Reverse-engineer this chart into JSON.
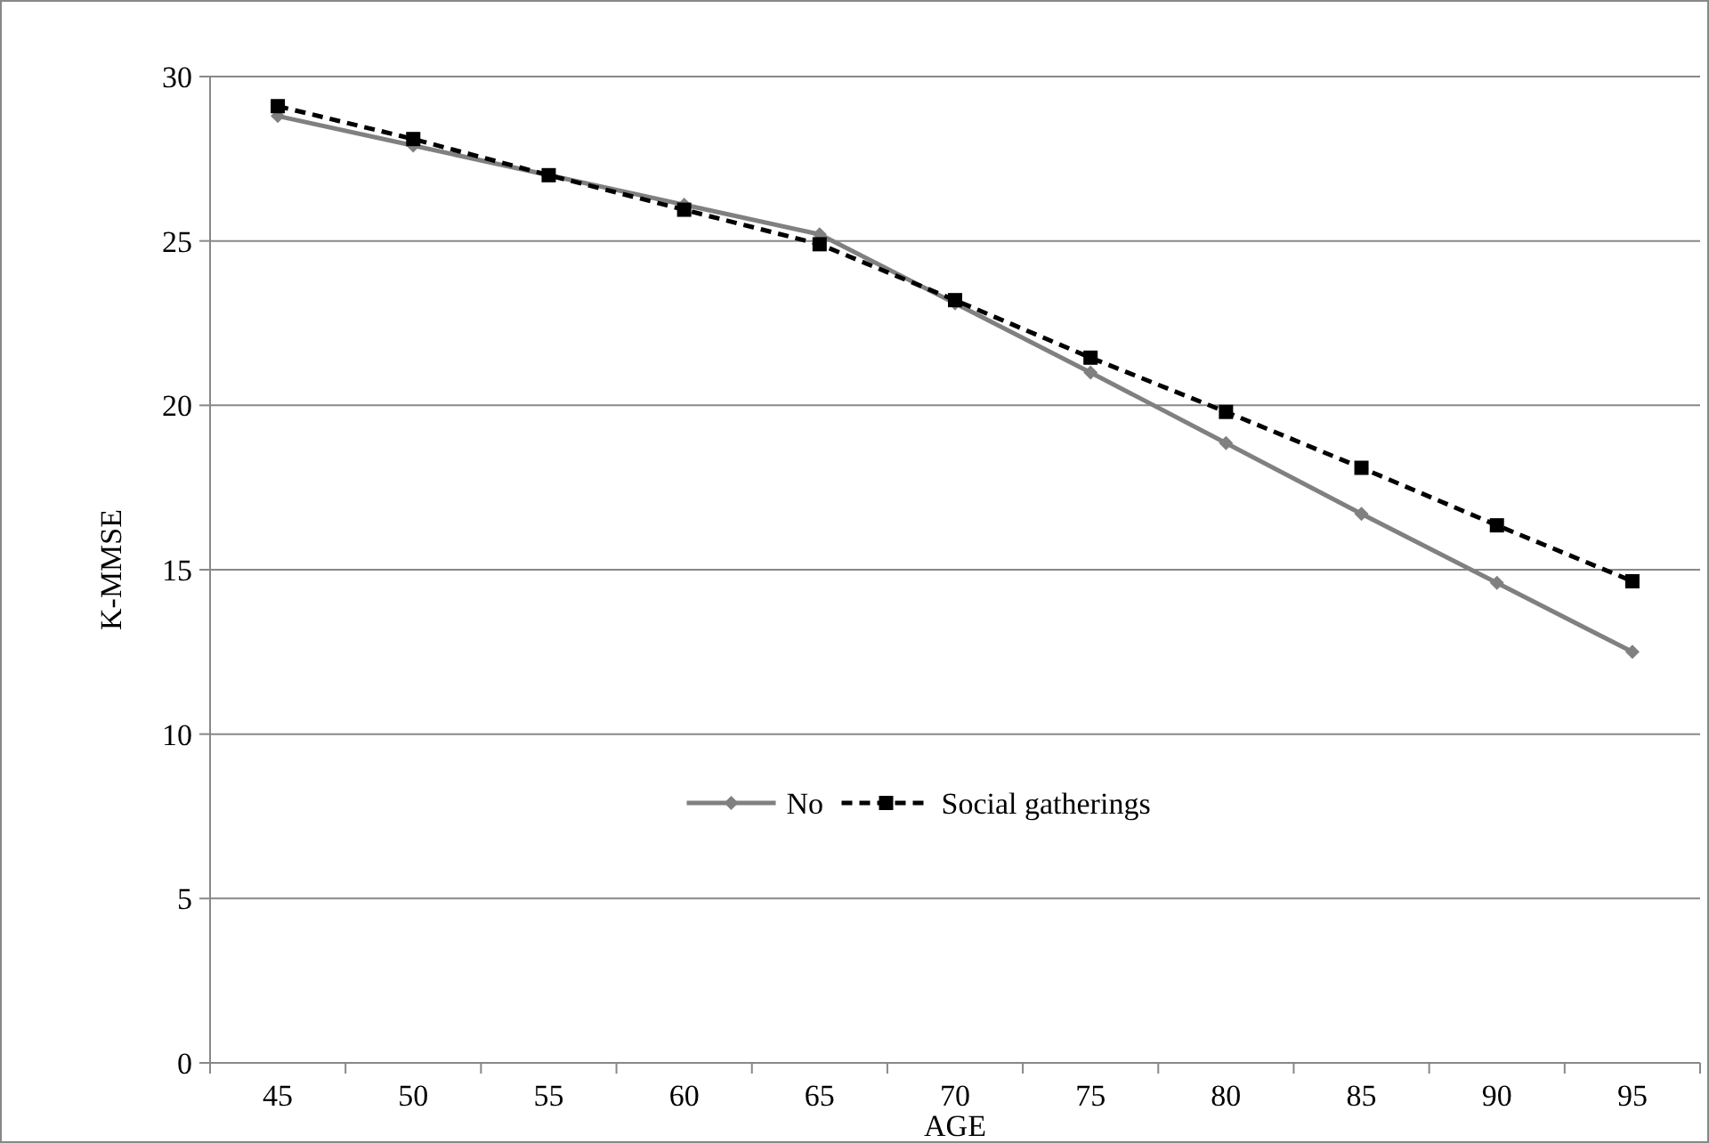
{
  "chart_data": {
    "type": "line",
    "xlabel": "AGE",
    "ylabel": "K-MMSE",
    "categories": [
      "45",
      "50",
      "55",
      "60",
      "65",
      "70",
      "75",
      "80",
      "85",
      "90",
      "95"
    ],
    "ylim": [
      0,
      30
    ],
    "yticks": [
      0,
      5,
      10,
      15,
      20,
      25,
      30
    ],
    "grid": "y",
    "legend": "bottom",
    "series": [
      {
        "name": "No",
        "color": "#808080",
        "marker": "diamond",
        "line_style": "solid",
        "values": [
          28.8,
          27.9,
          27.0,
          26.1,
          25.2,
          23.1,
          21.0,
          18.85,
          16.7,
          14.6,
          12.5
        ]
      },
      {
        "name": "Social gatherings",
        "color": "#000000",
        "marker": "square",
        "line_style": "dashed",
        "values": [
          29.1,
          28.1,
          27.0,
          25.95,
          24.9,
          23.2,
          21.45,
          19.8,
          18.1,
          16.35,
          14.65
        ]
      }
    ]
  }
}
